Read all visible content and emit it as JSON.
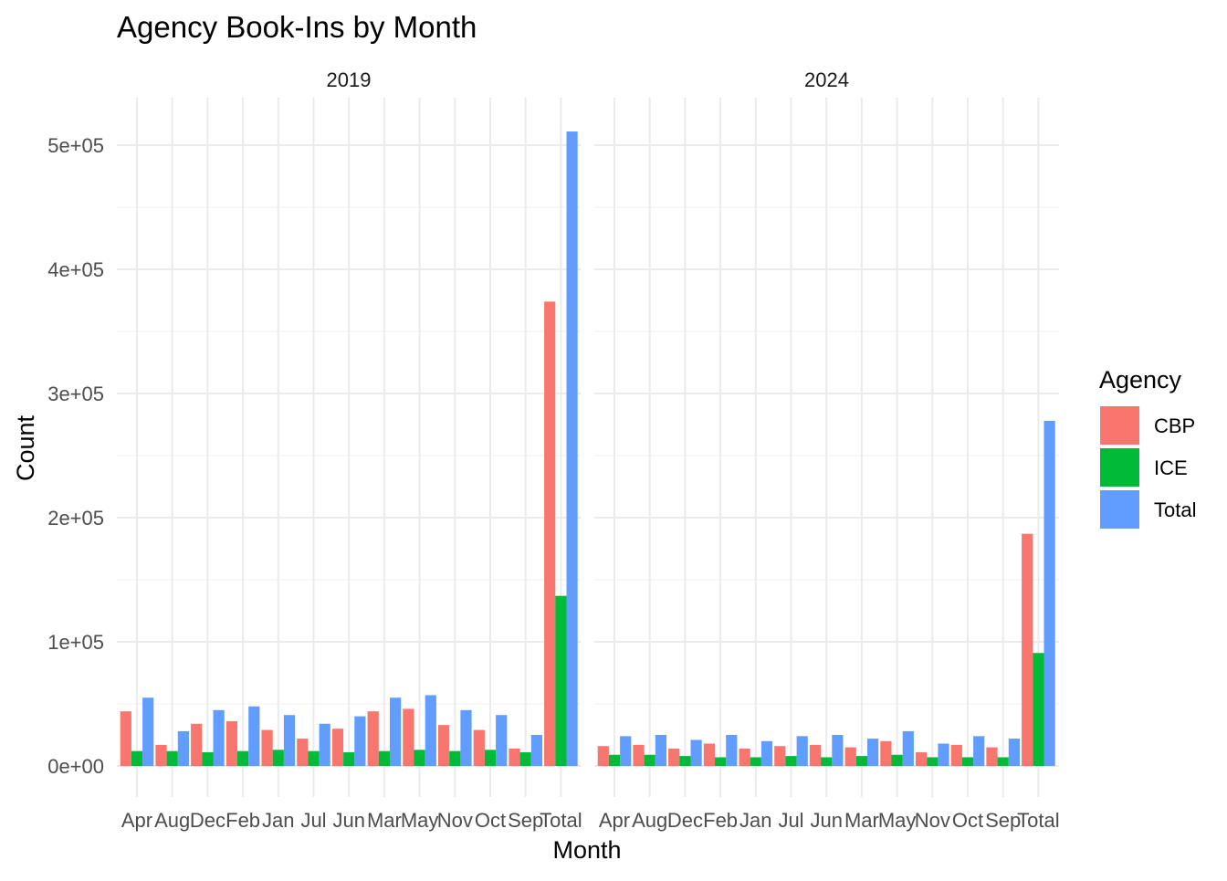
{
  "chart_data": {
    "type": "bar",
    "title": "Agency Book-Ins by Month",
    "xlabel": "Month",
    "ylabel": "Count",
    "ylim": [
      0,
      520000
    ],
    "y_ticks": [
      0,
      100000,
      200000,
      300000,
      400000,
      500000
    ],
    "y_tick_labels": [
      "0e+00",
      "1e+05",
      "2e+05",
      "3e+05",
      "4e+05",
      "5e+05"
    ],
    "grid": true,
    "legend": {
      "title": "Agency",
      "position": "right",
      "entries": [
        {
          "name": "CBP",
          "color": "#F8766D"
        },
        {
          "name": "ICE",
          "color": "#00BA38"
        },
        {
          "name": "Total",
          "color": "#619CFF"
        }
      ]
    },
    "categories": [
      "Apr",
      "Aug",
      "Dec",
      "Feb",
      "Jan",
      "Jul",
      "Jun",
      "Mar",
      "May",
      "Nov",
      "Oct",
      "Sep",
      "Total"
    ],
    "facets": [
      {
        "label": "2019",
        "series": [
          {
            "name": "CBP",
            "values": [
              44000,
              17000,
              34000,
              36000,
              29000,
              22000,
              30000,
              44000,
              46000,
              33000,
              29000,
              14000,
              374000
            ]
          },
          {
            "name": "ICE",
            "values": [
              12000,
              12000,
              11000,
              12000,
              13000,
              12000,
              11000,
              12000,
              13000,
              12000,
              13000,
              11000,
              137000
            ]
          },
          {
            "name": "Total",
            "values": [
              55000,
              28000,
              45000,
              48000,
              41000,
              34000,
              40000,
              55000,
              57000,
              45000,
              41000,
              25000,
              511000
            ]
          }
        ]
      },
      {
        "label": "2024",
        "series": [
          {
            "name": "CBP",
            "values": [
              16000,
              17000,
              14000,
              18000,
              14000,
              16000,
              17000,
              15000,
              20000,
              11000,
              17000,
              15000,
              187000
            ]
          },
          {
            "name": "ICE",
            "values": [
              9000,
              9000,
              8000,
              7000,
              7000,
              8000,
              7000,
              8000,
              9000,
              7000,
              7000,
              7000,
              91000
            ]
          },
          {
            "name": "Total",
            "values": [
              24000,
              25000,
              21000,
              25000,
              20000,
              24000,
              25000,
              22000,
              28000,
              18000,
              24000,
              22000,
              278000
            ]
          }
        ]
      }
    ]
  }
}
